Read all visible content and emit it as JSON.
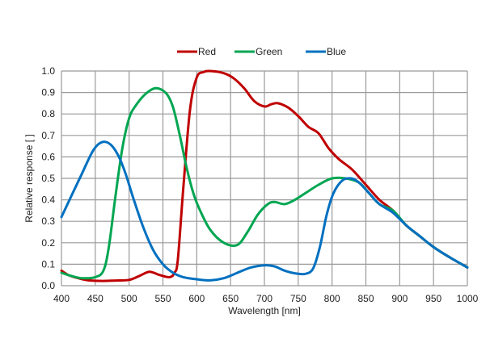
{
  "chart_data": {
    "type": "line",
    "title": "",
    "xlabel": "Wavelength [nm]",
    "ylabel": "Relative response [ ]",
    "xlim": [
      400,
      1000
    ],
    "ylim": [
      0.0,
      1.0
    ],
    "xticks": [
      "400",
      "450",
      "500",
      "550",
      "600",
      "650",
      "700",
      "750",
      "800",
      "850",
      "900",
      "950",
      "1000"
    ],
    "yticks": [
      "0.0",
      "0.1",
      "0.2",
      "0.3",
      "0.4",
      "0.5",
      "0.6",
      "0.7",
      "0.8",
      "0.9",
      "1.0"
    ],
    "grid": true,
    "legend_position": "top-center",
    "series": [
      {
        "name": "Red",
        "color": "#c00000",
        "x": [
          400,
          410,
          425,
          440,
          460,
          480,
          500,
          515,
          530,
          545,
          560,
          567,
          572,
          580,
          590,
          600,
          610,
          620,
          640,
          655,
          670,
          685,
          700,
          710,
          720,
          735,
          750,
          765,
          780,
          795,
          810,
          830,
          850,
          870,
          890,
          910,
          930,
          950,
          975,
          1000
        ],
        "y": [
          0.07,
          0.05,
          0.035,
          0.025,
          0.022,
          0.024,
          0.027,
          0.045,
          0.065,
          0.05,
          0.04,
          0.06,
          0.12,
          0.45,
          0.82,
          0.97,
          0.995,
          1.0,
          0.99,
          0.965,
          0.92,
          0.86,
          0.835,
          0.845,
          0.85,
          0.83,
          0.79,
          0.74,
          0.71,
          0.64,
          0.59,
          0.54,
          0.47,
          0.4,
          0.35,
          0.28,
          0.23,
          0.18,
          0.13,
          0.085
        ]
      },
      {
        "name": "Green",
        "color": "#00a651",
        "x": [
          400,
          415,
          430,
          450,
          462,
          470,
          480,
          490,
          500,
          510,
          525,
          540,
          555,
          565,
          575,
          585,
          595,
          605,
          620,
          640,
          660,
          675,
          690,
          705,
          715,
          730,
          745,
          760,
          780,
          800,
          820,
          840,
          855,
          870,
          890,
          910,
          930,
          950,
          975,
          1000
        ],
        "y": [
          0.06,
          0.045,
          0.035,
          0.04,
          0.07,
          0.18,
          0.42,
          0.64,
          0.78,
          0.84,
          0.895,
          0.92,
          0.895,
          0.83,
          0.7,
          0.55,
          0.43,
          0.35,
          0.26,
          0.2,
          0.19,
          0.25,
          0.33,
          0.38,
          0.39,
          0.38,
          0.4,
          0.43,
          0.47,
          0.5,
          0.5,
          0.48,
          0.43,
          0.38,
          0.35,
          0.28,
          0.23,
          0.18,
          0.13,
          0.085
        ]
      },
      {
        "name": "Blue",
        "color": "#0070c0",
        "x": [
          400,
          415,
          430,
          445,
          455,
          465,
          475,
          485,
          495,
          505,
          520,
          535,
          550,
          565,
          580,
          600,
          620,
          640,
          660,
          680,
          700,
          715,
          730,
          745,
          760,
          772,
          782,
          792,
          802,
          815,
          828,
          840,
          855,
          870,
          890,
          910,
          930,
          950,
          975,
          1000
        ],
        "y": [
          0.32,
          0.42,
          0.52,
          0.62,
          0.66,
          0.67,
          0.65,
          0.6,
          0.52,
          0.42,
          0.28,
          0.17,
          0.1,
          0.06,
          0.04,
          0.03,
          0.025,
          0.035,
          0.06,
          0.085,
          0.095,
          0.09,
          0.07,
          0.058,
          0.055,
          0.08,
          0.18,
          0.33,
          0.43,
          0.49,
          0.5,
          0.48,
          0.43,
          0.38,
          0.34,
          0.28,
          0.23,
          0.18,
          0.13,
          0.085
        ]
      }
    ]
  }
}
